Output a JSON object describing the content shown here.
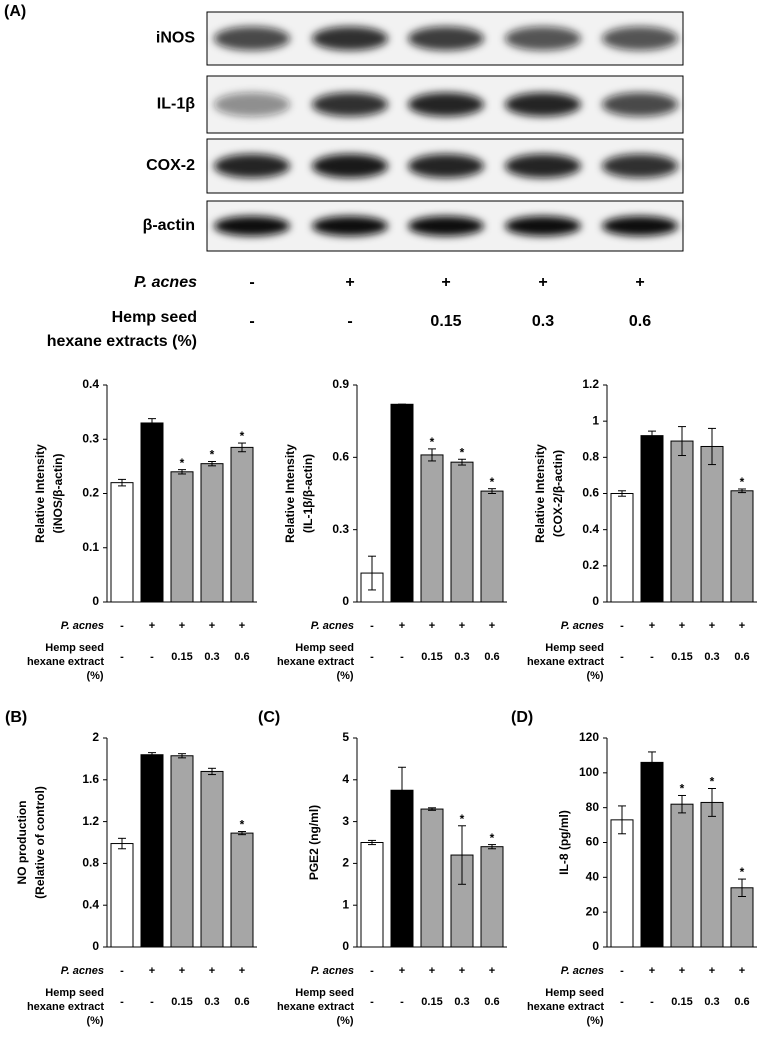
{
  "panel_a": {
    "label": "(A)",
    "bands": [
      "iNOS",
      "IL-1β",
      "COX-2",
      "β-actin"
    ],
    "rows": [
      {
        "label": [
          "P. acnes"
        ],
        "values": [
          "-",
          "+",
          "+",
          "+",
          "+"
        ]
      },
      {
        "label": [
          "Hemp seed",
          "hexane extracts (%)"
        ],
        "values": [
          "-",
          "-",
          "0.15",
          "0.3",
          "0.6"
        ]
      }
    ]
  },
  "chart_data": [
    {
      "type": "bar",
      "ylabel": [
        "Relative Intensity",
        "(iNOS/β-actin)"
      ],
      "values": [
        0.22,
        0.33,
        0.24,
        0.255,
        0.285
      ],
      "errors": [
        0.006,
        0.008,
        0.004,
        0.004,
        0.008
      ],
      "colors": [
        "#ffffff",
        "#000000",
        "#a6a6a6",
        "#a6a6a6",
        "#a6a6a6"
      ],
      "significance": [
        null,
        null,
        "*",
        "*",
        "*"
      ],
      "ylim": [
        0,
        0.4
      ],
      "yticks": [
        0,
        0.1,
        0.2,
        0.3,
        0.4
      ],
      "rows": [
        {
          "label": [
            "P. acnes"
          ],
          "values": [
            "-",
            "+",
            "+",
            "+",
            "+"
          ]
        },
        {
          "label": [
            "Hemp seed",
            "hexane extract",
            "(%)"
          ],
          "values": [
            "-",
            "-",
            "0.15",
            "0.3",
            "0.6"
          ]
        }
      ]
    },
    {
      "type": "bar",
      "ylabel": [
        "Relative Intensity",
        "(IL-1β/β-actin)"
      ],
      "values": [
        0.12,
        0.82,
        0.61,
        0.58,
        0.46
      ],
      "errors": [
        0.07,
        0,
        0.025,
        0.012,
        0.01
      ],
      "colors": [
        "#ffffff",
        "#000000",
        "#a6a6a6",
        "#a6a6a6",
        "#a6a6a6"
      ],
      "significance": [
        null,
        null,
        "*",
        "*",
        "*"
      ],
      "ylim": [
        0,
        0.9
      ],
      "yticks": [
        0,
        0.3,
        0.6,
        0.9
      ],
      "rows": [
        {
          "label": [
            "P. acnes"
          ],
          "values": [
            "-",
            "+",
            "+",
            "+",
            "+"
          ]
        },
        {
          "label": [
            "Hemp seed",
            "hexane extract",
            "(%)"
          ],
          "values": [
            "-",
            "-",
            "0.15",
            "0.3",
            "0.6"
          ]
        }
      ]
    },
    {
      "type": "bar",
      "ylabel": [
        "Relative Intensity",
        "(COX-2/β-actin)"
      ],
      "values": [
        0.6,
        0.92,
        0.89,
        0.86,
        0.615
      ],
      "errors": [
        0.015,
        0.025,
        0.08,
        0.1,
        0.01
      ],
      "colors": [
        "#ffffff",
        "#000000",
        "#a6a6a6",
        "#a6a6a6",
        "#a6a6a6"
      ],
      "significance": [
        null,
        null,
        null,
        null,
        "*"
      ],
      "ylim": [
        0,
        1.2
      ],
      "yticks": [
        0,
        0.2,
        0.4,
        0.6,
        0.8,
        1,
        1.2
      ],
      "rows": [
        {
          "label": [
            "P. acnes"
          ],
          "values": [
            "-",
            "+",
            "+",
            "+",
            "+"
          ]
        },
        {
          "label": [
            "Hemp seed",
            "hexane extract",
            "(%)"
          ],
          "values": [
            "-",
            "-",
            "0.15",
            "0.3",
            "0.6"
          ]
        }
      ]
    },
    {
      "type": "bar",
      "panel": "(B)",
      "ylabel": [
        "NO production",
        "(Relative of control)"
      ],
      "values": [
        0.99,
        1.84,
        1.83,
        1.68,
        1.09
      ],
      "errors": [
        0.05,
        0.02,
        0.02,
        0.03,
        0.015
      ],
      "colors": [
        "#ffffff",
        "#000000",
        "#a6a6a6",
        "#a6a6a6",
        "#a6a6a6"
      ],
      "significance": [
        null,
        null,
        null,
        null,
        "*"
      ],
      "ylim": [
        0,
        2
      ],
      "yticks": [
        0,
        0.4,
        0.8,
        1.2,
        1.6,
        2
      ],
      "rows": [
        {
          "label": [
            "P. acnes"
          ],
          "values": [
            "-",
            "+",
            "+",
            "+",
            "+"
          ]
        },
        {
          "label": [
            "Hemp seed",
            "hexane extract",
            "(%)"
          ],
          "values": [
            "-",
            "-",
            "0.15",
            "0.3",
            "0.6"
          ]
        }
      ]
    },
    {
      "type": "bar",
      "panel": "(C)",
      "ylabel": [
        "PGE2 (ng/ml)"
      ],
      "values": [
        2.5,
        3.75,
        3.3,
        2.2,
        2.4
      ],
      "errors": [
        0.05,
        0.55,
        0.03,
        0.7,
        0.05
      ],
      "colors": [
        "#ffffff",
        "#000000",
        "#a6a6a6",
        "#a6a6a6",
        "#a6a6a6"
      ],
      "significance": [
        null,
        null,
        null,
        "*",
        "*"
      ],
      "ylim": [
        0,
        5
      ],
      "yticks": [
        0,
        1,
        2,
        3,
        4,
        5
      ],
      "rows": [
        {
          "label": [
            "P. acnes"
          ],
          "values": [
            "-",
            "+",
            "+",
            "+",
            "+"
          ]
        },
        {
          "label": [
            "Hemp seed",
            "hexane extract",
            "(%)"
          ],
          "values": [
            "-",
            "-",
            "0.15",
            "0.3",
            "0.6"
          ]
        }
      ]
    },
    {
      "type": "bar",
      "panel": "(D)",
      "ylabel": [
        "IL-8 (pg/ml)"
      ],
      "values": [
        73,
        106,
        82,
        83,
        34
      ],
      "errors": [
        8,
        6,
        5,
        8,
        5
      ],
      "colors": [
        "#ffffff",
        "#000000",
        "#a6a6a6",
        "#a6a6a6",
        "#a6a6a6"
      ],
      "significance": [
        null,
        null,
        "*",
        "*",
        "*"
      ],
      "ylim": [
        0,
        120
      ],
      "yticks": [
        0,
        20,
        40,
        60,
        80,
        100,
        120
      ],
      "rows": [
        {
          "label": [
            "P. acnes"
          ],
          "values": [
            "-",
            "+",
            "+",
            "+",
            "+"
          ]
        },
        {
          "label": [
            "Hemp seed",
            "hexane extract",
            "(%)"
          ],
          "values": [
            "-",
            "-",
            "0.15",
            "0.3",
            "0.6"
          ]
        }
      ]
    }
  ]
}
